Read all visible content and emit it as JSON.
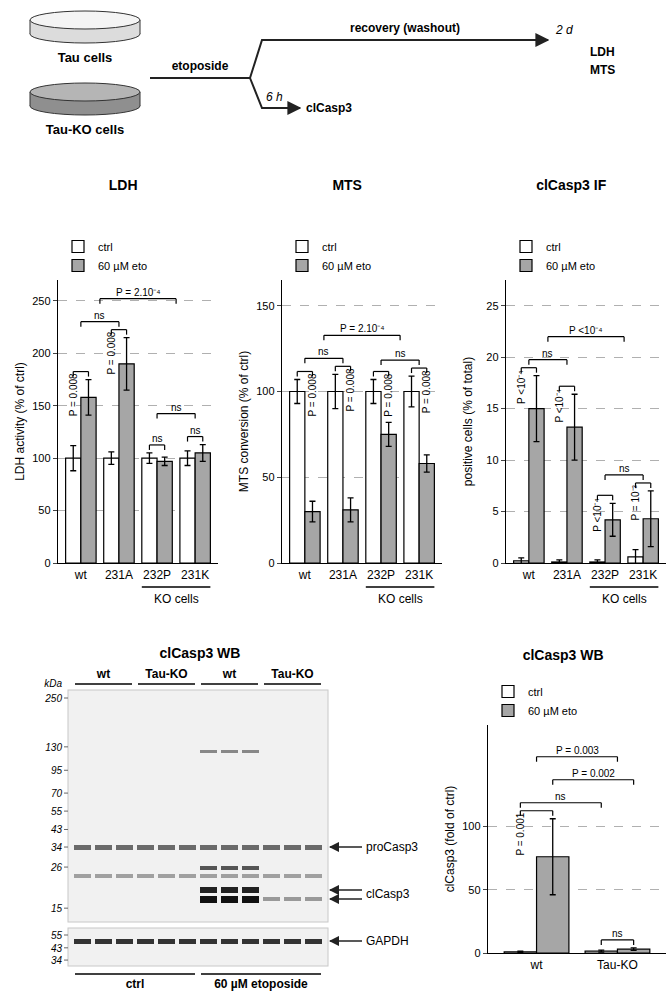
{
  "schematic": {
    "cells": [
      "Tau cells",
      "Tau-KO cells"
    ],
    "treatment": "etoposide",
    "recovery": "recovery (washout)",
    "short_time": "6 h",
    "short_readouts": [
      "clCasp3"
    ],
    "long_time": "2 d",
    "long_readouts": [
      "LDH",
      "MTS"
    ]
  },
  "chart_data": [
    {
      "type": "bar",
      "title": "LDH",
      "y_label": "LDH activity (% of ctrl)",
      "categories": [
        "wt",
        "231A",
        "232P",
        "231K"
      ],
      "series": [
        {
          "name": "ctrl",
          "color": "#ffffff",
          "values": [
            100,
            100,
            100,
            100
          ],
          "errors": [
            12,
            6,
            5,
            7
          ]
        },
        {
          "name": "60 µM eto",
          "color": "#a6a6a6",
          "values": [
            158,
            190,
            97,
            105
          ],
          "errors": [
            17,
            25,
            4,
            8
          ]
        }
      ],
      "ylim": [
        0,
        270
      ],
      "yticks": [
        0,
        50,
        100,
        150,
        200,
        250
      ],
      "grid": true,
      "legend": "top-left",
      "groups": [
        {
          "label": "KO cells",
          "categories": [
            "232P",
            "231K"
          ]
        }
      ],
      "comparisons": [
        {
          "from": {
            "categories": [
              "wt"
            ],
            "series": "ctrl"
          },
          "to": {
            "categories": [
              "wt"
            ],
            "series": "60 µM eto"
          },
          "label": "P = 0.008"
        },
        {
          "from": {
            "categories": [
              "231A"
            ],
            "series": "ctrl"
          },
          "to": {
            "categories": [
              "231A"
            ],
            "series": "60 µM eto"
          },
          "label": "P = 0.008"
        },
        {
          "from": {
            "categories": [
              "232P"
            ],
            "series": "ctrl"
          },
          "to": {
            "categories": [
              "232P"
            ],
            "series": "60 µM eto"
          },
          "label": "ns"
        },
        {
          "from": {
            "categories": [
              "231K"
            ],
            "series": "ctrl"
          },
          "to": {
            "categories": [
              "231K"
            ],
            "series": "60 µM eto"
          },
          "label": "ns"
        },
        {
          "from": {
            "categories": [
              "wt"
            ]
          },
          "to": {
            "categories": [
              "231A"
            ]
          },
          "label": "ns"
        },
        {
          "from": {
            "categories": [
              "232P"
            ]
          },
          "to": {
            "categories": [
              "231K"
            ]
          },
          "label": "ns"
        },
        {
          "from": {
            "categories": [
              "wt",
              "231A"
            ]
          },
          "to": {
            "categories": [
              "232P",
              "231K"
            ]
          },
          "label": "P = 2.10⁻⁴"
        }
      ]
    },
    {
      "type": "bar",
      "title": "MTS",
      "y_label": "MTS conversion (% of ctrl)",
      "categories": [
        "wt",
        "231A",
        "232P",
        "231K"
      ],
      "series": [
        {
          "name": "ctrl",
          "color": "#ffffff",
          "values": [
            100,
            100,
            100,
            100
          ],
          "errors": [
            7,
            10,
            7,
            9
          ]
        },
        {
          "name": "60 µM eto",
          "color": "#a6a6a6",
          "values": [
            30,
            31,
            75,
            58
          ],
          "errors": [
            6,
            7,
            7,
            5
          ]
        }
      ],
      "ylim": [
        0,
        165
      ],
      "yticks": [
        0,
        50,
        100,
        150
      ],
      "grid": true,
      "legend": "top-left",
      "groups": [
        {
          "label": "KO cells",
          "categories": [
            "232P",
            "231K"
          ]
        }
      ],
      "comparisons": [
        {
          "from": {
            "categories": [
              "wt"
            ],
            "series": "ctrl"
          },
          "to": {
            "categories": [
              "wt"
            ],
            "series": "60 µM eto"
          },
          "label": "P = 0.008"
        },
        {
          "from": {
            "categories": [
              "231A"
            ],
            "series": "ctrl"
          },
          "to": {
            "categories": [
              "231A"
            ],
            "series": "60 µM eto"
          },
          "label": "P = 0.008"
        },
        {
          "from": {
            "categories": [
              "232P"
            ],
            "series": "ctrl"
          },
          "to": {
            "categories": [
              "232P"
            ],
            "series": "60 µM eto"
          },
          "label": "P = 0.008"
        },
        {
          "from": {
            "categories": [
              "231K"
            ],
            "series": "ctrl"
          },
          "to": {
            "categories": [
              "231K"
            ],
            "series": "60 µM eto"
          },
          "label": "P = 0.008"
        },
        {
          "from": {
            "categories": [
              "wt"
            ]
          },
          "to": {
            "categories": [
              "231A"
            ]
          },
          "label": "ns"
        },
        {
          "from": {
            "categories": [
              "232P"
            ]
          },
          "to": {
            "categories": [
              "231K"
            ]
          },
          "label": "ns"
        },
        {
          "from": {
            "categories": [
              "wt",
              "231A"
            ]
          },
          "to": {
            "categories": [
              "232P",
              "231K"
            ]
          },
          "label": "P = 2.10⁻⁴"
        }
      ]
    },
    {
      "type": "bar",
      "title": "clCasp3 IF",
      "y_label": "positive cells (% of total)",
      "categories": [
        "wt",
        "231A",
        "232P",
        "231K"
      ],
      "series": [
        {
          "name": "ctrl",
          "color": "#ffffff",
          "values": [
            0.2,
            0.1,
            0.1,
            0.6
          ],
          "errors": [
            0.3,
            0.2,
            0.2,
            0.7
          ]
        },
        {
          "name": "60 µM eto",
          "color": "#a6a6a6",
          "values": [
            15,
            13.2,
            4.2,
            4.3
          ],
          "errors": [
            3.2,
            3.2,
            1.6,
            2.7
          ]
        }
      ],
      "ylim": [
        0,
        27.5
      ],
      "yticks": [
        0,
        5,
        10,
        15,
        20,
        25
      ],
      "grid": true,
      "legend": "top-left",
      "groups": [
        {
          "label": "KO cells",
          "categories": [
            "232P",
            "231K"
          ]
        }
      ],
      "comparisons": [
        {
          "from": {
            "categories": [
              "wt"
            ],
            "series": "ctrl"
          },
          "to": {
            "categories": [
              "wt"
            ],
            "series": "60 µM eto"
          },
          "label": "P <10⁻⁴"
        },
        {
          "from": {
            "categories": [
              "231A"
            ],
            "series": "ctrl"
          },
          "to": {
            "categories": [
              "231A"
            ],
            "series": "60 µM eto"
          },
          "label": "P <10⁻⁴"
        },
        {
          "from": {
            "categories": [
              "232P"
            ],
            "series": "ctrl"
          },
          "to": {
            "categories": [
              "232P"
            ],
            "series": "60 µM eto"
          },
          "label": "P <10⁻⁴"
        },
        {
          "from": {
            "categories": [
              "231K"
            ],
            "series": "ctrl"
          },
          "to": {
            "categories": [
              "231K"
            ],
            "series": "60 µM eto"
          },
          "label": "P = 10⁻³"
        },
        {
          "from": {
            "categories": [
              "wt"
            ]
          },
          "to": {
            "categories": [
              "231A"
            ]
          },
          "label": "ns"
        },
        {
          "from": {
            "categories": [
              "232P"
            ]
          },
          "to": {
            "categories": [
              "231K"
            ]
          },
          "label": "ns"
        },
        {
          "from": {
            "categories": [
              "wt",
              "231A"
            ]
          },
          "to": {
            "categories": [
              "232P",
              "231K"
            ]
          },
          "label": "P <10⁻⁴"
        }
      ]
    },
    {
      "type": "bar",
      "title": "clCasp3 WB",
      "y_label": "clCasp3 (fold of ctrl)",
      "categories": [
        "wt",
        "Tau-KO"
      ],
      "series": [
        {
          "name": "ctrl",
          "color": "#ffffff",
          "values": [
            1,
            1.5
          ],
          "errors": [
            0.5,
            0.8
          ]
        },
        {
          "name": "60 µM eto",
          "color": "#a6a6a6",
          "values": [
            76,
            3
          ],
          "errors": [
            30,
            1
          ]
        }
      ],
      "ylim": [
        0,
        180
      ],
      "yticks": [
        0,
        50,
        100
      ],
      "grid": true,
      "legend": "top-left",
      "groups": [],
      "comparisons": [
        {
          "from": {
            "categories": [
              "wt"
            ],
            "series": "ctrl"
          },
          "to": {
            "categories": [
              "wt"
            ],
            "series": "60 µM eto"
          },
          "label": "P = 0.001"
        },
        {
          "from": {
            "categories": [
              "Tau-KO"
            ],
            "series": "ctrl"
          },
          "to": {
            "categories": [
              "Tau-KO"
            ],
            "series": "60 µM eto"
          },
          "label": "ns"
        },
        {
          "from": {
            "categories": [
              "wt"
            ],
            "series": "ctrl"
          },
          "to": {
            "categories": [
              "Tau-KO"
            ],
            "series": "ctrl"
          },
          "label": "ns"
        },
        {
          "from": {
            "categories": [
              "wt"
            ],
            "series": "60 µM eto"
          },
          "to": {
            "categories": [
              "Tau-KO"
            ],
            "series": "60 µM eto"
          },
          "label": "P = 0.002"
        },
        {
          "from": {
            "categories": [
              "wt"
            ]
          },
          "to": {
            "categories": [
              "Tau-KO"
            ]
          },
          "label": "P = 0.003"
        }
      ]
    }
  ],
  "western_blot": {
    "title": "clCasp3 WB",
    "unit": "kDa",
    "markers": [
      250,
      130,
      95,
      70,
      55,
      43,
      34,
      26,
      15
    ],
    "loading_markers": [
      55,
      43,
      34
    ],
    "genotypes": [
      "wt",
      "Tau-KO",
      "wt",
      "Tau-KO"
    ],
    "lanes_per_group": 3,
    "conditions": [
      "ctrl",
      "60 µM etoposide"
    ],
    "bands": {
      "precursor": "proCasp3",
      "cleaved": "clCasp3",
      "loading": "GAPDH"
    }
  }
}
